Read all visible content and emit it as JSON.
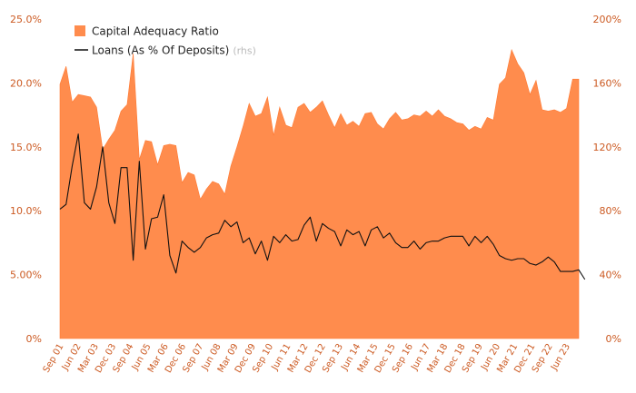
{
  "chart_data": {
    "type": "area",
    "legend_placement": "top-left",
    "grid": false,
    "colors": {
      "area": "#ff8c4d",
      "area_edge": "#ff7a33",
      "line": "#111111",
      "tick_text": "#cc5a22"
    },
    "x_tick_labels": [
      "Sep 01",
      "Jun 02",
      "Mar 03",
      "Dec 03",
      "Sep 04",
      "Jun 05",
      "Mar 06",
      "Dec 06",
      "Sep 07",
      "Jun 08",
      "Mar 09",
      "Dec 09",
      "Sep 10",
      "Jun 11",
      "Mar 12",
      "Dec 12",
      "Sep 13",
      "Jun 14",
      "Mar 15",
      "Dec 15",
      "Sep 16",
      "Jun 17",
      "Mar 18",
      "Dec 18",
      "Sep 19",
      "Jun 20",
      "Mar 21",
      "Dec 21",
      "Sep 22",
      "Jun 23"
    ],
    "y_left": {
      "ticks": [
        "0%",
        "5.00%",
        "10.0%",
        "15.0%",
        "20.0%",
        "25.0%"
      ],
      "ylim": [
        0,
        25
      ]
    },
    "y_right": {
      "ticks": [
        "0%",
        "40%",
        "80%",
        "120%",
        "160%",
        "200%"
      ],
      "ylim": [
        0,
        200
      ]
    },
    "series": [
      {
        "name": "Capital Adequacy Ratio",
        "axis": "left",
        "values": [
          19.9,
          21.3,
          18.5,
          19.1,
          19.0,
          18.9,
          18.1,
          14.8,
          15.6,
          16.3,
          17.8,
          18.3,
          22.3,
          14.0,
          15.5,
          15.4,
          13.6,
          15.1,
          15.2,
          15.1,
          12.2,
          13.0,
          12.8,
          10.9,
          11.7,
          12.3,
          12.1,
          11.3,
          13.5,
          15.0,
          16.6,
          18.4,
          17.4,
          17.6,
          18.9,
          15.9,
          18.1,
          16.7,
          16.5,
          18.1,
          18.4,
          17.7,
          18.1,
          18.6,
          17.5,
          16.5,
          17.6,
          16.7,
          17.0,
          16.6,
          17.6,
          17.7,
          16.8,
          16.4,
          17.2,
          17.7,
          17.1,
          17.2,
          17.5,
          17.4,
          17.8,
          17.4,
          17.9,
          17.4,
          17.2,
          16.9,
          16.8,
          16.3,
          16.6,
          16.4,
          17.3,
          17.1,
          19.9,
          20.4,
          22.6,
          21.5,
          20.8,
          19.1,
          20.2,
          17.9,
          17.8,
          17.9,
          17.7,
          18.0,
          20.3,
          20.3
        ]
      },
      {
        "name": "Loans (As % Of Deposits)",
        "note": "(rhs)",
        "axis": "right",
        "values": [
          81,
          84,
          108,
          128,
          85,
          81,
          95,
          120,
          85,
          72,
          107,
          107,
          49,
          111,
          56,
          75,
          76,
          90,
          52,
          41,
          61,
          57,
          54,
          57,
          63,
          65,
          66,
          74,
          70,
          73,
          60,
          63,
          53,
          61,
          49,
          64,
          60,
          65,
          61,
          62,
          71,
          76,
          61,
          72,
          69,
          67,
          58,
          68,
          65,
          67,
          58,
          68,
          70,
          63,
          66,
          60,
          57,
          57,
          61,
          56,
          60,
          61,
          61,
          63,
          64,
          64,
          64,
          58,
          64,
          60,
          64,
          59,
          52,
          50,
          49,
          50,
          50,
          47,
          46,
          48,
          51,
          48,
          42,
          42,
          42,
          43,
          37
        ]
      }
    ]
  }
}
